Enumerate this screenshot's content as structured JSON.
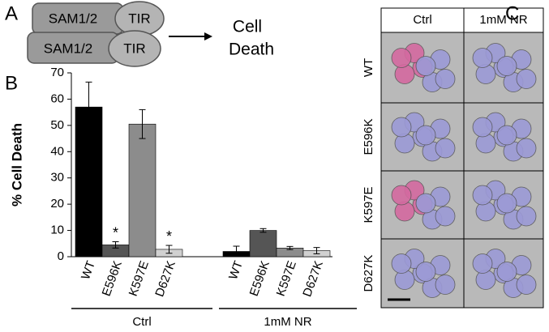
{
  "panel_labels": [
    "A",
    "B",
    "C"
  ],
  "diagram": {
    "domains": [
      {
        "sam": "SAM1/2",
        "tir": "TIR"
      },
      {
        "sam": "SAM1/2",
        "tir": "TIR"
      }
    ],
    "outcome": [
      "Cell",
      "Death"
    ]
  },
  "chart_data": {
    "type": "bar",
    "ylabel": "% Cell Death",
    "categories": [
      "WT",
      "E596K",
      "K597E",
      "D627K"
    ],
    "colors": [
      "#000000",
      "#555555",
      "#8c8c8c",
      "#d0d0d0"
    ],
    "series": [
      {
        "name": "Ctrl",
        "values": [
          57,
          4.5,
          50.5,
          2.8
        ],
        "errors": [
          9.5,
          1.2,
          5.5,
          1.5
        ],
        "significance": [
          null,
          "*",
          null,
          "*"
        ]
      },
      {
        "name": "1mM NR",
        "values": [
          2,
          10,
          3.3,
          2.3
        ],
        "errors": [
          2,
          0.7,
          0.6,
          1.2
        ],
        "significance": [
          null,
          null,
          null,
          null
        ]
      }
    ],
    "ylim": [
      0,
      70
    ],
    "yticks": [
      0,
      10,
      20,
      30,
      40,
      50,
      60,
      70
    ]
  },
  "images": {
    "columns": [
      "Ctrl",
      "1mM NR"
    ],
    "rows": [
      "WT",
      "E596K",
      "K597E",
      "D627K"
    ]
  }
}
